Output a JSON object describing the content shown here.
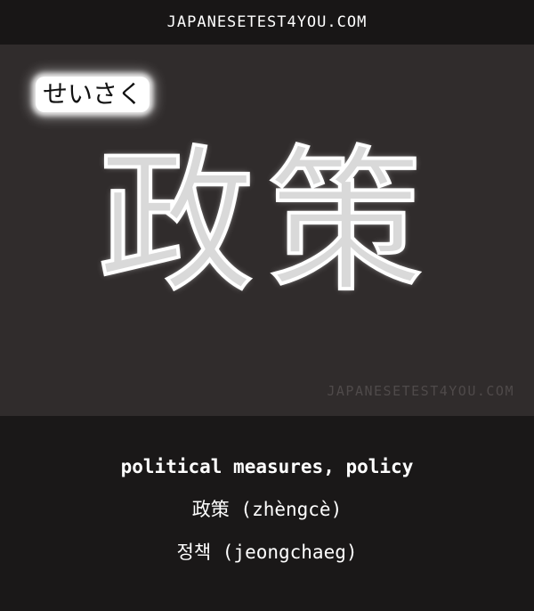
{
  "header": {
    "site_name": "JAPANESETEST4YOU.COM"
  },
  "card": {
    "reading": "せいさく",
    "kanji": "政策",
    "watermark": "JAPANESETEST4YOU.COM"
  },
  "meanings": {
    "english": "political measures, policy",
    "chinese": "政策 (zhèngcè)",
    "korean": "정책 (jeongchaeg)"
  },
  "colors": {
    "banner_background": "#181616",
    "card_background": "#302c2c",
    "text": "#ffffff",
    "watermark": "#4f4a4a"
  }
}
